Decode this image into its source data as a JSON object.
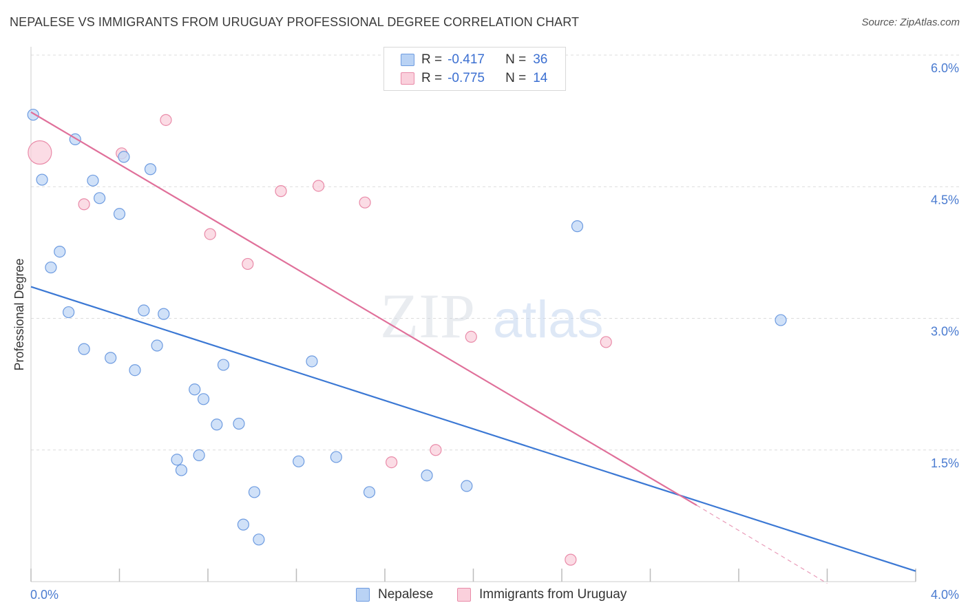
{
  "header": {
    "title": "NEPALESE VS IMMIGRANTS FROM URUGUAY PROFESSIONAL DEGREE CORRELATION CHART",
    "source": "Source: ZipAtlas.com"
  },
  "watermark": {
    "part1": "ZIP",
    "part2": "atlas"
  },
  "legend_top": {
    "rows": [
      {
        "r_label": "R =",
        "r_value": "-0.417",
        "n_label": "N =",
        "n_value": "36",
        "color": "#a9c7f0",
        "border": "#6d9be0"
      },
      {
        "r_label": "R =",
        "r_value": "-0.775",
        "n_label": "N =",
        "n_value": "14",
        "color": "#f8c3d2",
        "border": "#e98aa8"
      }
    ]
  },
  "legend_bottom": {
    "items": [
      {
        "label": "Nepalese",
        "color": "#b9d2f4",
        "border": "#6d9be0"
      },
      {
        "label": "Immigrants from Uruguay",
        "color": "#fad0dc",
        "border": "#e98aa8"
      }
    ]
  },
  "chart_data": {
    "type": "scatter",
    "title": "NEPALESE VS IMMIGRANTS FROM URUGUAY PROFESSIONAL DEGREE CORRELATION CHART",
    "ylabel": "Professional Degree",
    "xlabel": "",
    "xlim": [
      0,
      4.0
    ],
    "ylim": [
      0,
      6.0
    ],
    "x_tick_labels": [
      "0.0%",
      "4.0%"
    ],
    "y_tick_labels": [
      "1.5%",
      "3.0%",
      "4.5%",
      "6.0%"
    ],
    "y_ticks": [
      1.5,
      3.0,
      4.5,
      6.0
    ],
    "grid": true,
    "colors": {
      "nepalese": "#3b78d4",
      "uruguay": "#e0709a"
    },
    "series": [
      {
        "name": "Nepalese",
        "trend": {
          "x0": 0.0,
          "y0": 3.36,
          "x1": 4.0,
          "y1": 0.12
        },
        "points": [
          [
            0.01,
            5.32
          ],
          [
            0.05,
            4.58
          ],
          [
            0.2,
            5.04
          ],
          [
            0.28,
            4.57
          ],
          [
            0.31,
            4.37
          ],
          [
            0.42,
            4.84
          ],
          [
            0.54,
            4.7
          ],
          [
            0.4,
            4.19
          ],
          [
            0.13,
            3.76
          ],
          [
            0.09,
            3.58
          ],
          [
            0.17,
            3.07
          ],
          [
            0.51,
            3.09
          ],
          [
            0.6,
            3.05
          ],
          [
            0.24,
            2.65
          ],
          [
            0.36,
            2.55
          ],
          [
            0.57,
            2.69
          ],
          [
            0.47,
            2.41
          ],
          [
            0.87,
            2.47
          ],
          [
            1.27,
            2.51
          ],
          [
            0.74,
            2.19
          ],
          [
            0.78,
            2.08
          ],
          [
            0.84,
            1.79
          ],
          [
            0.94,
            1.8
          ],
          [
            0.66,
            1.39
          ],
          [
            0.76,
            1.44
          ],
          [
            0.68,
            1.27
          ],
          [
            1.01,
            1.02
          ],
          [
            1.21,
            1.37
          ],
          [
            1.38,
            1.42
          ],
          [
            1.53,
            1.02
          ],
          [
            1.79,
            1.21
          ],
          [
            1.97,
            1.09
          ],
          [
            1.03,
            0.48
          ],
          [
            0.96,
            0.65
          ],
          [
            2.47,
            4.05
          ],
          [
            3.39,
            2.98
          ]
        ]
      },
      {
        "name": "Immigrants from Uruguay",
        "trend": {
          "x0": 0.0,
          "y0": 5.35,
          "x1": 3.01,
          "y1": 0.87,
          "dash_x1": 3.6,
          "dash_y1": -0.02
        },
        "points": [
          [
            0.04,
            4.89
          ],
          [
            0.61,
            5.26
          ],
          [
            0.41,
            4.88
          ],
          [
            0.24,
            4.3
          ],
          [
            0.81,
            3.96
          ],
          [
            0.98,
            3.62
          ],
          [
            1.13,
            4.45
          ],
          [
            1.3,
            4.51
          ],
          [
            1.51,
            4.32
          ],
          [
            1.99,
            2.79
          ],
          [
            2.6,
            2.73
          ],
          [
            1.83,
            1.5
          ],
          [
            1.63,
            1.36
          ],
          [
            2.44,
            0.25
          ]
        ]
      }
    ]
  }
}
